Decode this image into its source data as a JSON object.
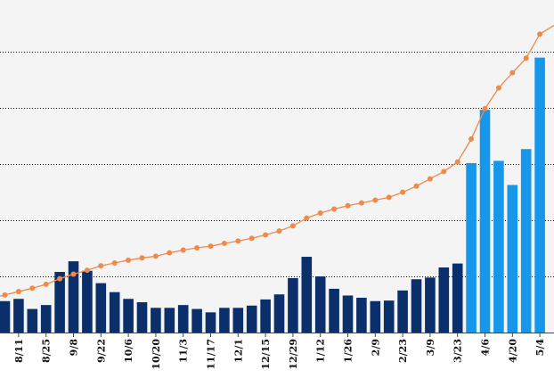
{
  "chart_data": {
    "type": "bar",
    "title": "",
    "xlabel": "",
    "ylabel": "",
    "grid": "horizontal dotted",
    "legend": "none",
    "colors": {
      "plot_background": "#f4f4f4",
      "bar_dark": "#0b2f6b",
      "bar_light": "#1797ea",
      "line": "#ef8a4a",
      "grid": "#000000",
      "axis": "#444444"
    },
    "x_tick_labels": [
      "8/11",
      "8/25",
      "9/8",
      "9/22",
      "10/6",
      "10/20",
      "11/3",
      "11/17",
      "12/1",
      "12/15",
      "12/29",
      "1/12",
      "1/26",
      "2/9",
      "2/23",
      "3/9",
      "3/23",
      "4/6",
      "4/20",
      "5/4"
    ],
    "series": [
      {
        "type": "bar",
        "values": [
          5.6,
          6.0,
          4.2,
          4.9,
          10.8,
          12.7,
          11.0,
          8.8,
          7.2,
          6.0,
          5.4,
          4.4,
          4.4,
          4.9,
          4.2,
          3.6,
          4.4,
          4.4,
          4.8,
          5.9,
          6.8,
          9.7,
          13.5,
          10.0,
          7.8,
          6.6,
          6.2,
          5.6,
          5.7,
          7.5,
          9.5,
          9.8,
          11.6,
          12.3,
          30.2,
          39.7,
          30.6,
          26.3,
          32.7,
          49.0
        ],
        "highlight_from_index": 34
      },
      {
        "type": "line",
        "values": [
          6.7,
          7.3,
          7.9,
          8.6,
          9.6,
          10.4,
          11.1,
          11.9,
          12.4,
          12.9,
          13.3,
          13.6,
          14.2,
          14.7,
          15.1,
          15.4,
          15.9,
          16.3,
          16.8,
          17.4,
          18.1,
          19.0,
          20.4,
          21.3,
          22.0,
          22.6,
          23.1,
          23.6,
          24.1,
          25.0,
          26.1,
          27.4,
          28.7,
          30.4,
          34.5,
          39.9,
          43.6,
          46.3,
          48.9,
          53.2
        ]
      }
    ],
    "ylim": [
      0,
      58
    ],
    "y_grid_values": [
      10,
      20,
      30,
      40,
      50
    ]
  }
}
